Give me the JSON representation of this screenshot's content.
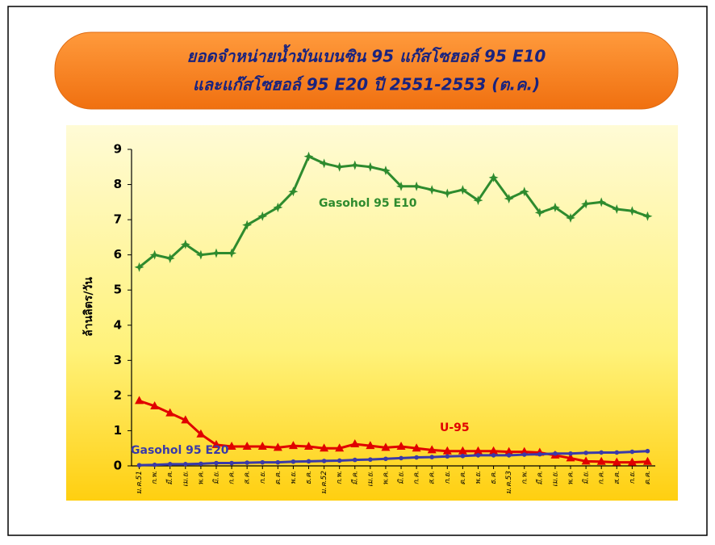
{
  "chart_data": {
    "type": "line",
    "title": [
      "ยอดจำหน่ายน้ำมันเบนซิน 95 แก๊สโซฮอล์ 95 E10",
      "และแก๊สโซฮอล์ 95 E20  ปี 2551-2553  (ต.ค.)"
    ],
    "y_label": "ล้านลิตร/วัน",
    "categories": [
      "ม.ค.51",
      "ก.พ.",
      "มี.ค.",
      "เม.ย.",
      "พ.ค.",
      "มิ.ย.",
      "ก.ค.",
      "ส.ค.",
      "ก.ย.",
      "ต.ค.",
      "พ.ย.",
      "ธ.ค.",
      "ม.ค.52",
      "ก.พ.",
      "มี.ค.",
      "เม.ย.",
      "พ.ค.",
      "มิ.ย.",
      "ก.ค.",
      "ส.ค.",
      "ก.ย.",
      "ต.ค.",
      "พ.ย.",
      "ธ.ค.",
      "ม.ค.53",
      "ก.พ.",
      "มี.ค.",
      "เม.ย.",
      "พ.ค.",
      "มิ.ย.",
      "ก.ค.",
      "ส.ค.",
      "ก.ย.",
      "ต.ค."
    ],
    "series": [
      {
        "name": "Gasohol 95 E10",
        "color": "#2e8b2e",
        "marker": "star",
        "values": [
          5.65,
          6.0,
          5.9,
          6.3,
          6.0,
          6.05,
          6.05,
          6.85,
          7.1,
          7.35,
          7.8,
          8.8,
          8.6,
          8.5,
          8.55,
          8.5,
          8.4,
          7.95,
          7.95,
          7.85,
          7.75,
          7.85,
          7.55,
          8.2,
          7.6,
          7.8,
          7.2,
          7.35,
          7.05,
          7.45,
          7.5,
          7.3,
          7.25,
          7.1
        ]
      },
      {
        "name": "U-95",
        "color": "#e00000",
        "marker": "triangle",
        "values": [
          1.85,
          1.7,
          1.5,
          1.3,
          0.9,
          0.6,
          0.55,
          0.55,
          0.55,
          0.52,
          0.57,
          0.55,
          0.5,
          0.5,
          0.62,
          0.57,
          0.52,
          0.55,
          0.5,
          0.45,
          0.42,
          0.42,
          0.42,
          0.42,
          0.4,
          0.4,
          0.38,
          0.3,
          0.22,
          0.13,
          0.12,
          0.1,
          0.1,
          0.12
        ]
      },
      {
        "name": "Gasohol 95 E20",
        "color": "#3a3aa8",
        "marker": "circle",
        "values": [
          0.02,
          0.03,
          0.05,
          0.05,
          0.06,
          0.08,
          0.08,
          0.09,
          0.1,
          0.1,
          0.12,
          0.13,
          0.14,
          0.15,
          0.17,
          0.18,
          0.2,
          0.22,
          0.24,
          0.25,
          0.27,
          0.28,
          0.3,
          0.3,
          0.3,
          0.32,
          0.33,
          0.35,
          0.35,
          0.37,
          0.38,
          0.38,
          0.4,
          0.42
        ]
      }
    ],
    "ylim": [
      0,
      9
    ],
    "yticks": [
      0,
      1,
      2,
      3,
      4,
      5,
      6,
      7,
      8,
      9
    ],
    "grid": false
  }
}
